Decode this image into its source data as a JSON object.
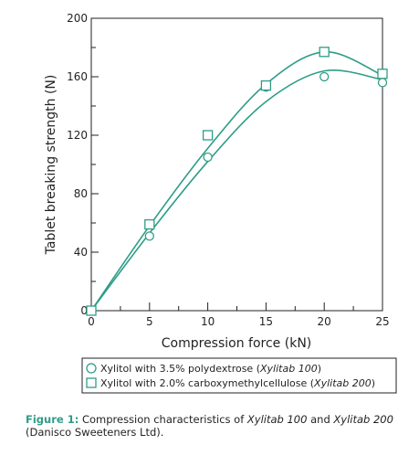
{
  "chart_data": {
    "type": "line",
    "xlabel": "Compression force (kN)",
    "ylabel": "Tablet breaking strength (N)",
    "xlim": [
      0,
      25
    ],
    "ylim": [
      0,
      200
    ],
    "x_ticks": [
      0,
      5,
      10,
      15,
      20,
      25
    ],
    "y_ticks": [
      0,
      40,
      80,
      120,
      160,
      200
    ],
    "grid": false,
    "legend_position": "bottom-right",
    "series": [
      {
        "name": "Xylitol with 3.5% polydextrose (Xylitab 100)",
        "name_plain": "Xylitol with 3.5% polydextrose (",
        "name_italic": "Xylitab 100",
        "name_end": ")",
        "marker": "circle",
        "x": [
          0,
          5,
          10,
          15,
          20,
          25
        ],
        "y": [
          0,
          51,
          105,
          153,
          160,
          156
        ],
        "fit": [
          [
            0,
            0
          ],
          [
            5,
            53
          ],
          [
            10,
            102
          ],
          [
            15,
            143
          ],
          [
            20,
            164
          ],
          [
            25,
            158
          ]
        ]
      },
      {
        "name": "Xylitol with 2.0% carboxymethylcellulose (Xylitab 200)",
        "name_plain": "Xylitol with 2.0% carboxymethylcellulose (",
        "name_italic": "Xylitab 200",
        "name_end": ")",
        "marker": "square",
        "x": [
          0,
          5,
          10,
          15,
          20,
          25
        ],
        "y": [
          0,
          59,
          120,
          154,
          177,
          162
        ],
        "fit": [
          [
            0,
            0
          ],
          [
            5,
            58
          ],
          [
            10,
            111
          ],
          [
            15,
            155
          ],
          [
            20,
            177
          ],
          [
            25,
            161
          ]
        ]
      }
    ],
    "line_color": "#2e9d87"
  },
  "caption": {
    "label": "Figure 1:",
    "text_1": " Compression characteristics of ",
    "italic_1": "Xylitab 100",
    "text_2": " and ",
    "italic_2": "Xylitab 200",
    "text_3": "(Danisco Sweeteners Ltd)."
  }
}
